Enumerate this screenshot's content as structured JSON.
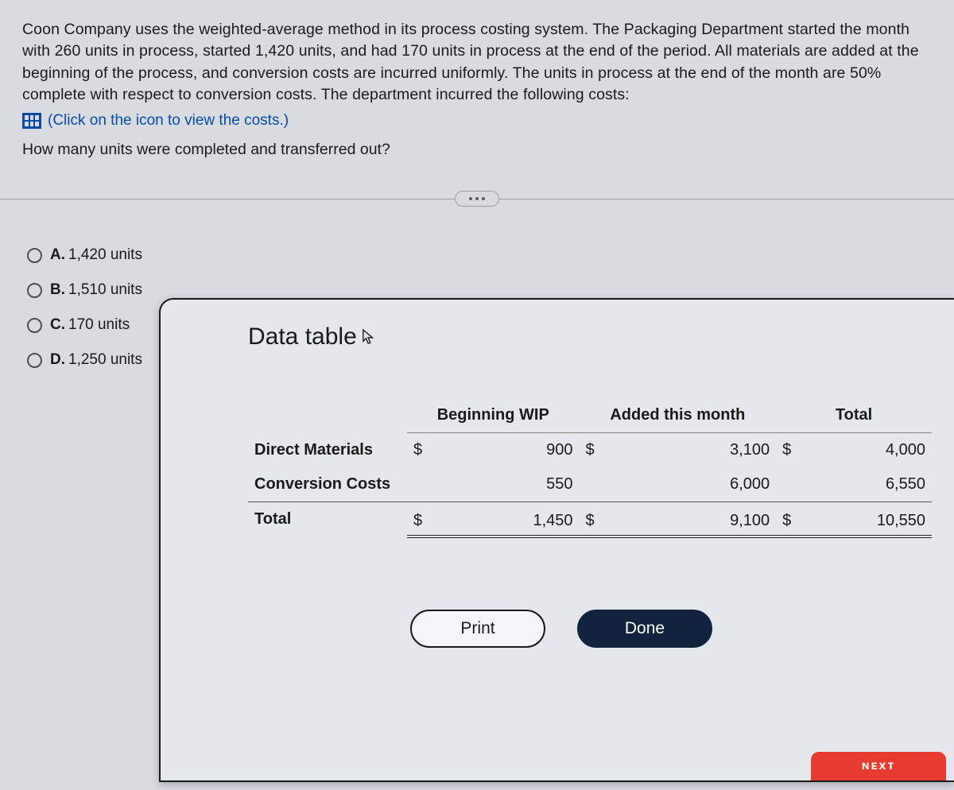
{
  "prompt": {
    "body": "Coon Company uses the weighted-average method in its process costing system. The Packaging Department started the month with 260 units in process, started 1,420 units, and had 170 units in process at the end of the period. All materials are added at the beginning of the process, and conversion costs are incurred uniformly. The units in process at the end of the month are 50% complete with respect to conversion costs. The department incurred the following costs:",
    "icon_link": "(Click on the icon to view the costs.)",
    "followup": "How many units were completed and transferred out?"
  },
  "options": [
    {
      "letter": "A.",
      "text": "1,420 units"
    },
    {
      "letter": "B.",
      "text": "1,510 units"
    },
    {
      "letter": "C.",
      "text": "170 units"
    },
    {
      "letter": "D.",
      "text": "1,250 units"
    }
  ],
  "modal": {
    "title": "Data table",
    "columns": [
      "",
      "Beginning WIP",
      "Added this month",
      "Total"
    ],
    "rows": [
      {
        "label": "Direct Materials",
        "d1": "$",
        "v1": "900",
        "d2": "$",
        "v2": "3,100",
        "d3": "$",
        "v3": "4,000",
        "cls": ""
      },
      {
        "label": "Conversion Costs",
        "d1": "",
        "v1": "550",
        "d2": "",
        "v2": "6,000",
        "d3": "",
        "v3": "6,550",
        "cls": "conv-border"
      },
      {
        "label": "Total",
        "d1": "$",
        "v1": "1,450",
        "d2": "$",
        "v2": "9,100",
        "d3": "$",
        "v3": "10,550",
        "cls": "total-row"
      }
    ],
    "print_label": "Print",
    "done_label": "Done"
  },
  "red_fragment": "ɴᴇxᴛ",
  "colors": {
    "page_bg": "#d8dce1",
    "modal_bg": "#e4e7eb",
    "link": "#0b4aa2",
    "done_bg": "#12233e",
    "red": "#e63b2e"
  }
}
